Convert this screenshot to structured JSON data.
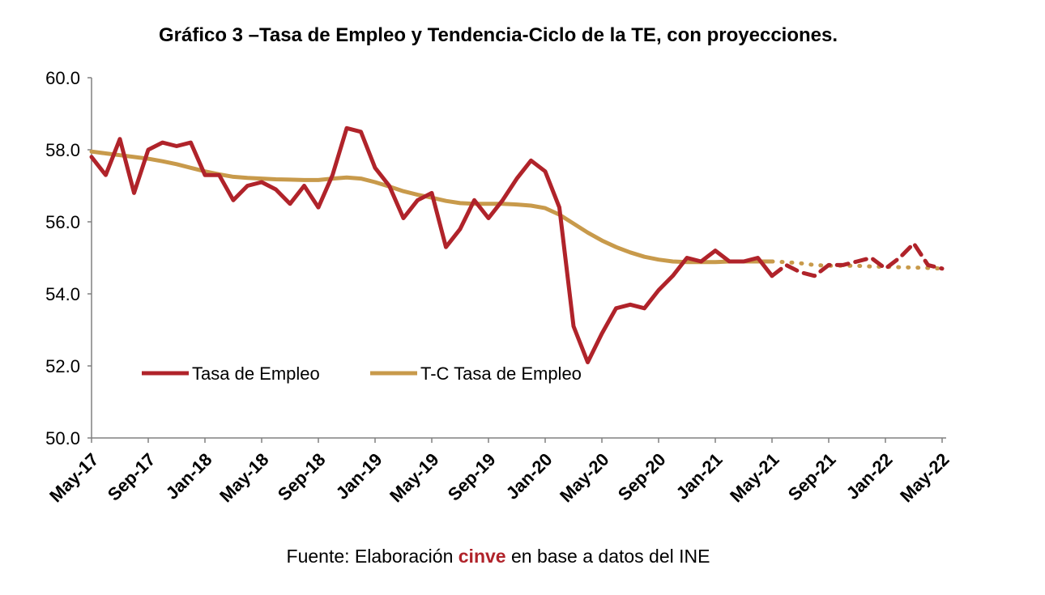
{
  "title": "Gráfico 3 –Tasa de Empleo y Tendencia-Ciclo de la TE, con proyecciones.",
  "source": {
    "prefix": "Fuente: Elaboración ",
    "brand": "cinve",
    "suffix": " en base a datos del INE"
  },
  "colors": {
    "te": "#b0232a",
    "tc": "#c89a4b",
    "axis": "#808080"
  },
  "chart_data": {
    "type": "line",
    "title": "Gráfico 3 –Tasa de Empleo y Tendencia-Ciclo de la TE, con proyecciones.",
    "ylim": [
      50,
      60
    ],
    "yticks": [
      "50.0",
      "52.0",
      "54.0",
      "56.0",
      "58.0",
      "60.0"
    ],
    "xtick_labels": [
      "May-17",
      "Sep-17",
      "Jan-18",
      "May-18",
      "Sep-18",
      "Jan-19",
      "May-19",
      "Sep-19",
      "Jan-20",
      "May-20",
      "Sep-20",
      "Jan-21",
      "May-21",
      "Sep-21",
      "Jan-22",
      "May-22"
    ],
    "x_start": "May-17",
    "x_end": "May-22",
    "grid": false,
    "legend_position": "lower-left",
    "series": [
      {
        "name": "Tasa de Empleo",
        "style": "solid-then-dashed",
        "projection_from": "May-21",
        "values": [
          57.8,
          57.3,
          58.3,
          56.8,
          58.0,
          58.2,
          58.1,
          58.2,
          57.3,
          57.3,
          56.6,
          57.0,
          57.1,
          56.9,
          56.5,
          57.0,
          56.4,
          57.3,
          58.6,
          58.5,
          57.5,
          57.0,
          56.1,
          56.6,
          56.8,
          55.3,
          55.8,
          56.6,
          56.1,
          56.6,
          57.2,
          57.7,
          57.4,
          56.4,
          53.1,
          52.1,
          52.9,
          53.6,
          53.7,
          53.6,
          54.1,
          54.5,
          55.0,
          54.9,
          55.2,
          54.9,
          54.9,
          55.0,
          54.5,
          54.8,
          54.6,
          54.5,
          54.8,
          54.8,
          54.9,
          55.0,
          54.7,
          55.0,
          55.4,
          54.8,
          54.7
        ]
      },
      {
        "name": "T-C Tasa de Empleo",
        "style": "solid-then-dotted",
        "projection_from": "May-21",
        "values": [
          57.95,
          57.9,
          57.85,
          57.8,
          57.75,
          57.68,
          57.6,
          57.5,
          57.4,
          57.32,
          57.25,
          57.22,
          57.2,
          57.18,
          57.17,
          57.16,
          57.16,
          57.2,
          57.23,
          57.2,
          57.1,
          56.98,
          56.85,
          56.75,
          56.67,
          56.58,
          56.52,
          56.5,
          56.5,
          56.5,
          56.48,
          56.45,
          56.38,
          56.2,
          55.95,
          55.7,
          55.48,
          55.3,
          55.15,
          55.03,
          54.95,
          54.9,
          54.88,
          54.88,
          54.88,
          54.9,
          54.9,
          54.9,
          54.9,
          54.88,
          54.85,
          54.8,
          54.78,
          54.78,
          54.78,
          54.76,
          54.75,
          54.74,
          54.73,
          54.72,
          54.7
        ]
      }
    ]
  }
}
